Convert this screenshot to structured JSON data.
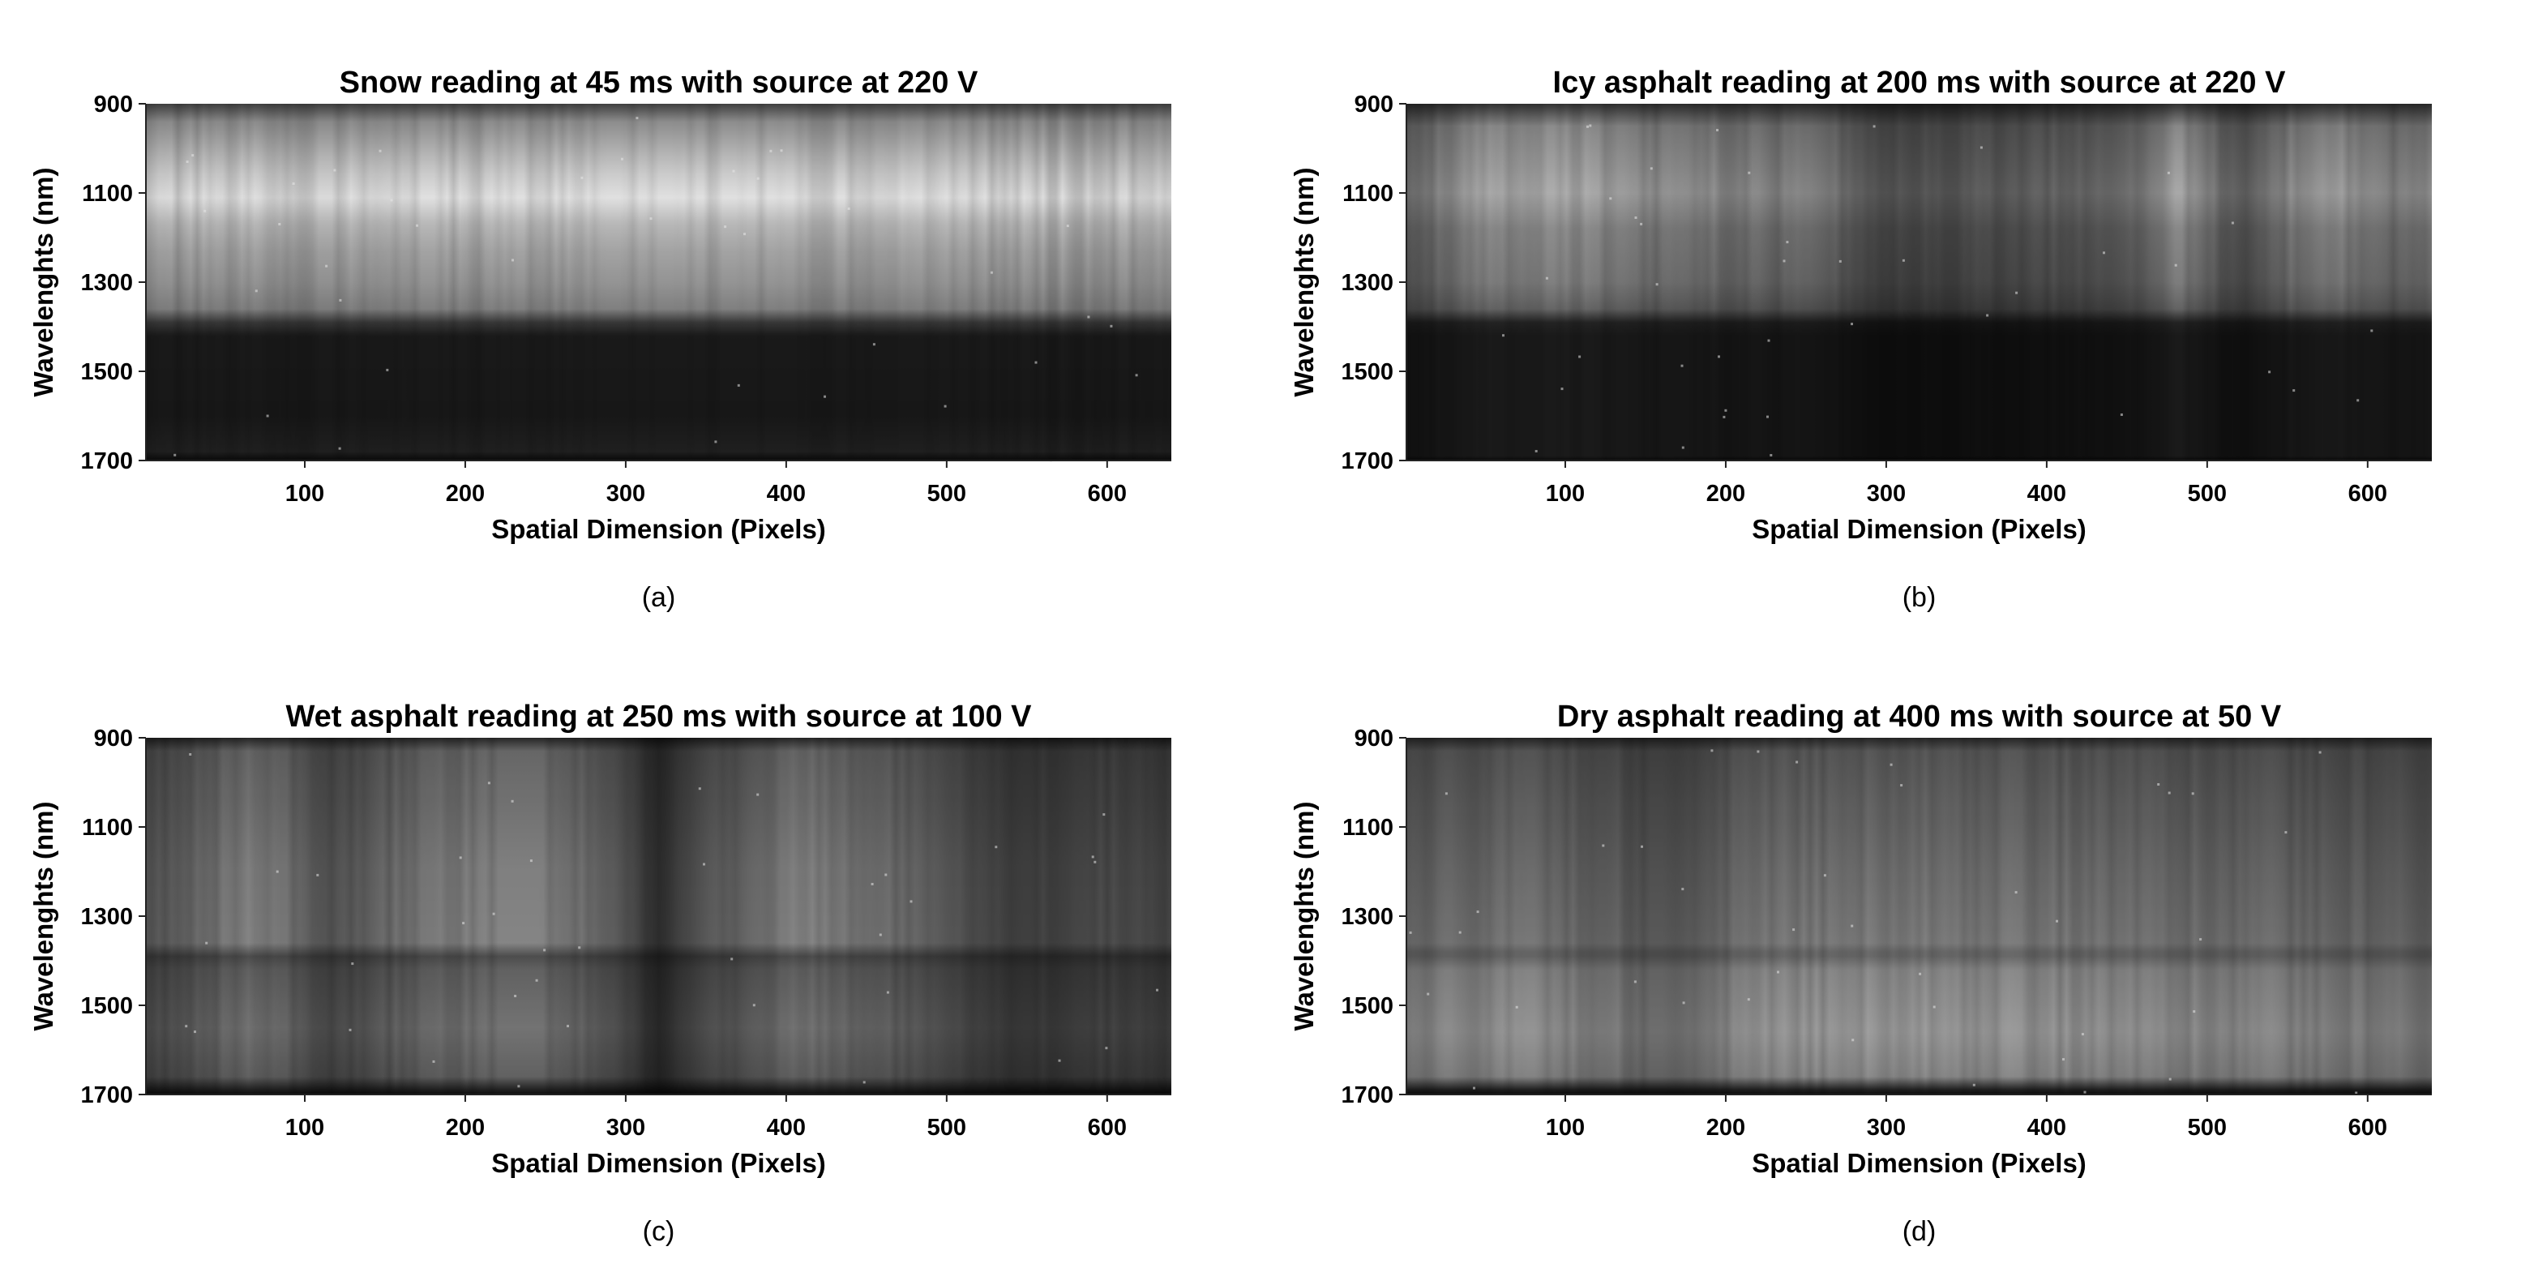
{
  "chart_data": [
    {
      "type": "heatmap",
      "panel_label": "(a)",
      "title": "Snow reading at 45 ms with source at 220 V",
      "xlabel": "Spatial Dimension (Pixels)",
      "ylabel": "Wavelenghts (nm)",
      "x_ticks": [
        100,
        200,
        300,
        400,
        500,
        600
      ],
      "y_ticks": [
        900,
        1100,
        1300,
        1500,
        1700
      ],
      "xlim": [
        1,
        640
      ],
      "ylim": [
        900,
        1700
      ],
      "y_reversed": true,
      "colormap": "grayscale",
      "wavelength_profile": [
        {
          "nm": 900,
          "level": 0.25
        },
        {
          "nm": 940,
          "level": 0.55
        },
        {
          "nm": 1010,
          "level": 0.7
        },
        {
          "nm": 1060,
          "level": 0.8
        },
        {
          "nm": 1110,
          "level": 0.88
        },
        {
          "nm": 1170,
          "level": 0.72
        },
        {
          "nm": 1230,
          "level": 0.64
        },
        {
          "nm": 1300,
          "level": 0.58
        },
        {
          "nm": 1360,
          "level": 0.5
        },
        {
          "nm": 1390,
          "level": 0.22
        },
        {
          "nm": 1420,
          "level": 0.1
        },
        {
          "nm": 1600,
          "level": 0.09
        },
        {
          "nm": 1680,
          "level": 0.12
        },
        {
          "nm": 1700,
          "level": 0.04
        }
      ],
      "spatial_profile": [
        {
          "px": 1,
          "level": 0.9
        },
        {
          "px": 100,
          "level": 0.93
        },
        {
          "px": 200,
          "level": 0.95
        },
        {
          "px": 300,
          "level": 1.0
        },
        {
          "px": 400,
          "level": 0.98
        },
        {
          "px": 500,
          "level": 0.95
        },
        {
          "px": 640,
          "level": 0.9
        }
      ]
    },
    {
      "type": "heatmap",
      "panel_label": "(b)",
      "title": "Icy asphalt reading at 200 ms with source at 220 V",
      "xlabel": "Spatial Dimension (Pixels)",
      "ylabel": "Wavelenghts (nm)",
      "x_ticks": [
        100,
        200,
        300,
        400,
        500,
        600
      ],
      "y_ticks": [
        900,
        1100,
        1300,
        1500,
        1700
      ],
      "xlim": [
        1,
        640
      ],
      "ylim": [
        900,
        1700
      ],
      "y_reversed": true,
      "colormap": "grayscale",
      "wavelength_profile": [
        {
          "nm": 900,
          "level": 0.2
        },
        {
          "nm": 950,
          "level": 0.55
        },
        {
          "nm": 1100,
          "level": 0.68
        },
        {
          "nm": 1180,
          "level": 0.55
        },
        {
          "nm": 1300,
          "level": 0.5
        },
        {
          "nm": 1360,
          "level": 0.4
        },
        {
          "nm": 1390,
          "level": 0.14
        },
        {
          "nm": 1420,
          "level": 0.1
        },
        {
          "nm": 1690,
          "level": 0.1
        },
        {
          "nm": 1700,
          "level": 0.04
        }
      ],
      "spatial_profile": [
        {
          "px": 1,
          "level": 0.6
        },
        {
          "px": 40,
          "level": 0.85
        },
        {
          "px": 90,
          "level": 1.0
        },
        {
          "px": 150,
          "level": 0.8
        },
        {
          "px": 210,
          "level": 0.75
        },
        {
          "px": 260,
          "level": 0.7
        },
        {
          "px": 300,
          "level": 0.45
        },
        {
          "px": 350,
          "level": 0.5
        },
        {
          "px": 400,
          "level": 0.55
        },
        {
          "px": 450,
          "level": 0.6
        },
        {
          "px": 480,
          "level": 0.95
        },
        {
          "px": 520,
          "level": 0.5
        },
        {
          "px": 570,
          "level": 0.95
        },
        {
          "px": 620,
          "level": 0.7
        },
        {
          "px": 640,
          "level": 0.8
        }
      ]
    },
    {
      "type": "heatmap",
      "panel_label": "(c)",
      "title": "Wet asphalt reading at 250 ms with source at 100 V",
      "xlabel": "Spatial Dimension (Pixels)",
      "ylabel": "Wavelenghts (nm)",
      "x_ticks": [
        100,
        200,
        300,
        400,
        500,
        600
      ],
      "y_ticks": [
        900,
        1100,
        1300,
        1500,
        1700
      ],
      "xlim": [
        1,
        640
      ],
      "ylim": [
        900,
        1700
      ],
      "y_reversed": true,
      "colormap": "grayscale",
      "wavelength_profile": [
        {
          "nm": 900,
          "level": 0.15
        },
        {
          "nm": 930,
          "level": 0.4
        },
        {
          "nm": 1200,
          "level": 0.5
        },
        {
          "nm": 1360,
          "level": 0.52
        },
        {
          "nm": 1390,
          "level": 0.3
        },
        {
          "nm": 1420,
          "level": 0.38
        },
        {
          "nm": 1550,
          "level": 0.45
        },
        {
          "nm": 1660,
          "level": 0.38
        },
        {
          "nm": 1690,
          "level": 0.12
        },
        {
          "nm": 1700,
          "level": 0.05
        }
      ],
      "spatial_profile": [
        {
          "px": 1,
          "level": 0.6
        },
        {
          "px": 70,
          "level": 0.95
        },
        {
          "px": 120,
          "level": 0.6
        },
        {
          "px": 180,
          "level": 0.9
        },
        {
          "px": 240,
          "level": 1.0
        },
        {
          "px": 290,
          "level": 0.7
        },
        {
          "px": 320,
          "level": 0.35
        },
        {
          "px": 360,
          "level": 0.7
        },
        {
          "px": 410,
          "level": 0.95
        },
        {
          "px": 460,
          "level": 0.8
        },
        {
          "px": 540,
          "level": 0.45
        },
        {
          "px": 590,
          "level": 0.55
        },
        {
          "px": 640,
          "level": 0.5
        }
      ]
    },
    {
      "type": "heatmap",
      "panel_label": "(d)",
      "title": "Dry asphalt reading at 400 ms with source at 50 V",
      "xlabel": "Spatial Dimension (Pixels)",
      "ylabel": "Wavelenghts (nm)",
      "x_ticks": [
        100,
        200,
        300,
        400,
        500,
        600
      ],
      "y_ticks": [
        900,
        1100,
        1300,
        1500,
        1700
      ],
      "xlim": [
        1,
        640
      ],
      "ylim": [
        900,
        1700
      ],
      "y_reversed": true,
      "colormap": "grayscale",
      "wavelength_profile": [
        {
          "nm": 900,
          "level": 0.15
        },
        {
          "nm": 930,
          "level": 0.35
        },
        {
          "nm": 1200,
          "level": 0.45
        },
        {
          "nm": 1360,
          "level": 0.5
        },
        {
          "nm": 1385,
          "level": 0.4
        },
        {
          "nm": 1420,
          "level": 0.55
        },
        {
          "nm": 1560,
          "level": 0.62
        },
        {
          "nm": 1660,
          "level": 0.55
        },
        {
          "nm": 1690,
          "level": 0.12
        },
        {
          "nm": 1700,
          "level": 0.05
        }
      ],
      "spatial_profile": [
        {
          "px": 1,
          "level": 0.75
        },
        {
          "px": 60,
          "level": 0.9
        },
        {
          "px": 120,
          "level": 0.8
        },
        {
          "px": 170,
          "level": 0.6
        },
        {
          "px": 220,
          "level": 0.9
        },
        {
          "px": 300,
          "level": 0.95
        },
        {
          "px": 380,
          "level": 0.9
        },
        {
          "px": 460,
          "level": 0.85
        },
        {
          "px": 560,
          "level": 0.8
        },
        {
          "px": 640,
          "level": 0.7
        }
      ]
    }
  ]
}
